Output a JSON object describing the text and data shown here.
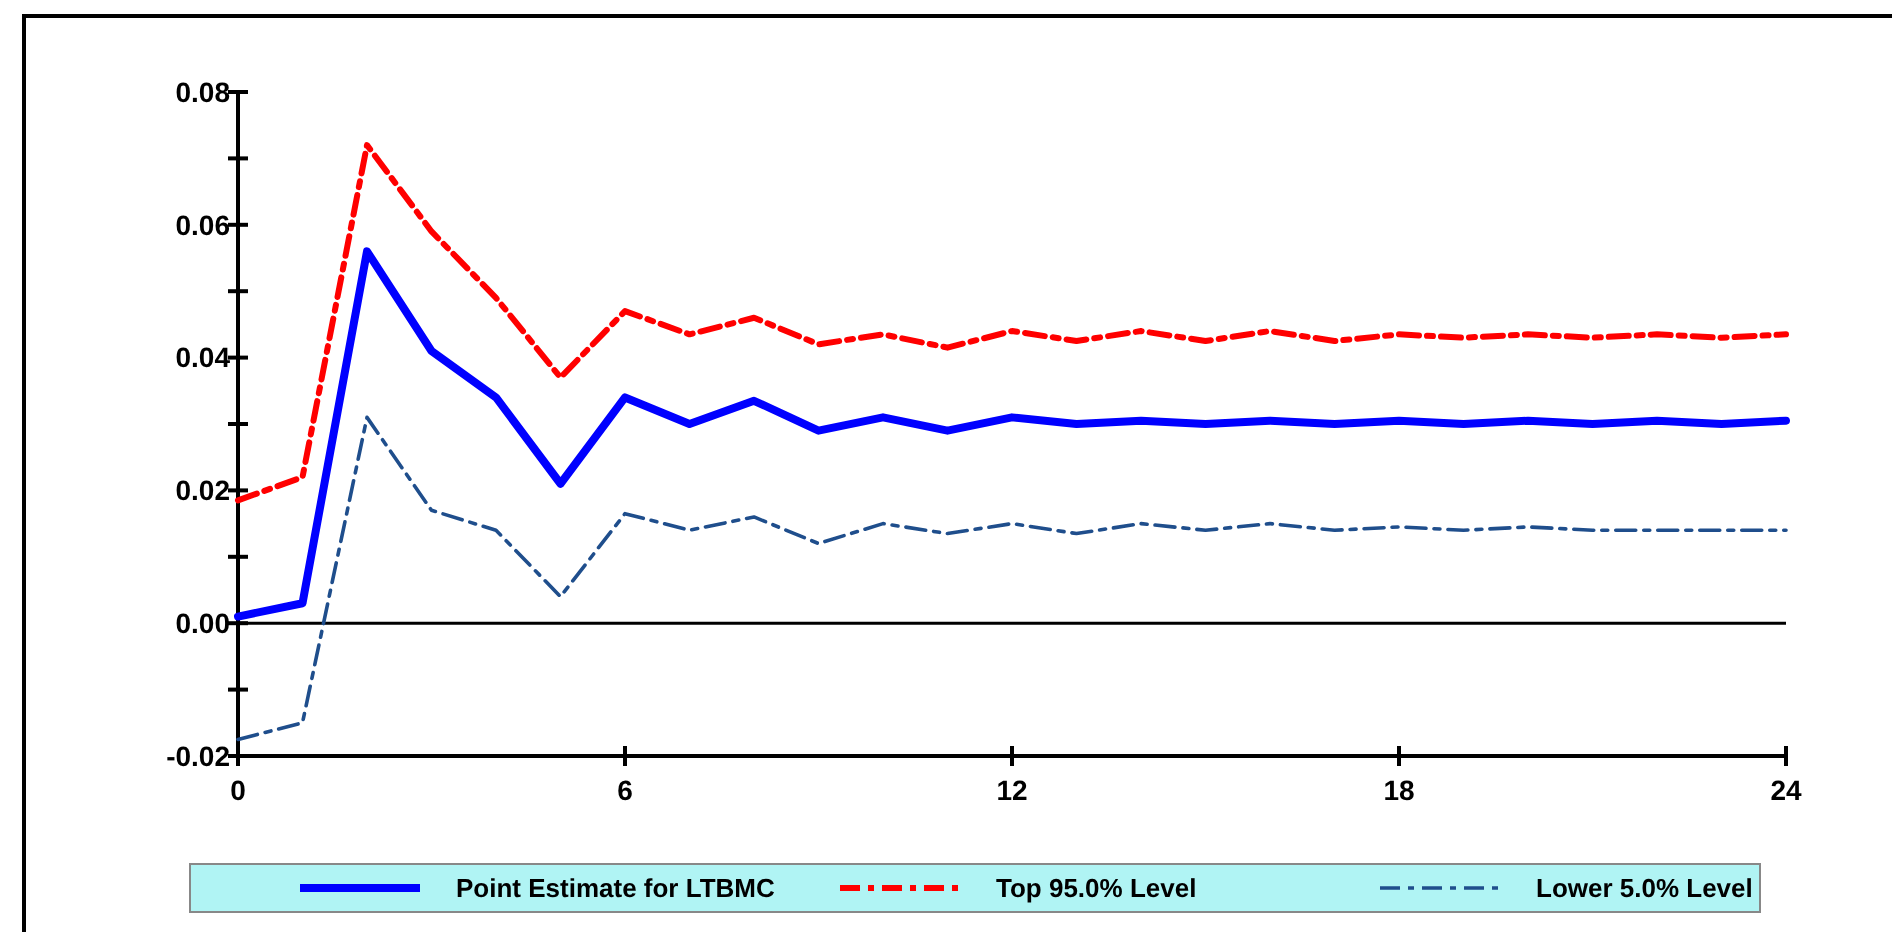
{
  "chart_data": {
    "type": "line",
    "x": [
      0,
      1,
      2,
      3,
      4,
      5,
      6,
      7,
      8,
      9,
      10,
      11,
      12,
      13,
      14,
      15,
      16,
      17,
      18,
      19,
      20,
      21,
      22,
      23,
      24
    ],
    "series": [
      {
        "name": "Point Estimate for LTBMC",
        "color": "#0000ff",
        "line_style": "solid",
        "values": [
          0.001,
          0.003,
          0.056,
          0.041,
          0.034,
          0.021,
          0.034,
          0.03,
          0.0335,
          0.029,
          0.031,
          0.029,
          0.031,
          0.03,
          0.0305,
          0.03,
          0.0305,
          0.03,
          0.0305,
          0.03,
          0.0305,
          0.03,
          0.0305,
          0.03,
          0.0305
        ]
      },
      {
        "name": "Top 95.0% Level",
        "color": "#ff0000",
        "line_style": "dashed",
        "values": [
          0.0185,
          0.022,
          0.072,
          0.059,
          0.049,
          0.037,
          0.047,
          0.0435,
          0.046,
          0.042,
          0.0435,
          0.0415,
          0.044,
          0.0425,
          0.044,
          0.0425,
          0.044,
          0.0425,
          0.0435,
          0.043,
          0.0435,
          0.043,
          0.0435,
          0.043,
          0.0435
        ]
      },
      {
        "name": "Lower 5.0% Level",
        "color": "#1f4e8c",
        "line_style": "dashed",
        "values": [
          -0.0175,
          -0.015,
          0.031,
          0.017,
          0.014,
          0.004,
          0.0165,
          0.014,
          0.016,
          0.012,
          0.015,
          0.0135,
          0.015,
          0.0135,
          0.015,
          0.014,
          0.015,
          0.014,
          0.0145,
          0.014,
          0.0145,
          0.014,
          0.014,
          0.014,
          0.014
        ]
      }
    ],
    "xlim": [
      0,
      24
    ],
    "xticks": [
      0,
      6,
      12,
      18,
      24
    ],
    "ylim": [
      -0.02,
      0.08
    ],
    "yticks": [
      {
        "value": -0.02,
        "label": "-0.02"
      },
      {
        "value": -0.01,
        "label": null
      },
      {
        "value": 0,
        "label": "0.00"
      },
      {
        "value": 0.01,
        "label": null
      },
      {
        "value": 0.02,
        "label": "0.02"
      },
      {
        "value": 0.03,
        "label": null
      },
      {
        "value": 0.04,
        "label": "0.04"
      },
      {
        "value": 0.05,
        "label": null
      },
      {
        "value": 0.06,
        "label": "0.06"
      },
      {
        "value": 0.07,
        "label": null
      },
      {
        "value": 0.08,
        "label": "0.08"
      }
    ],
    "ref_lines": [
      {
        "axis": "y",
        "value": 0,
        "color": "#000000"
      }
    ],
    "grid": false,
    "legend": "bottom"
  }
}
